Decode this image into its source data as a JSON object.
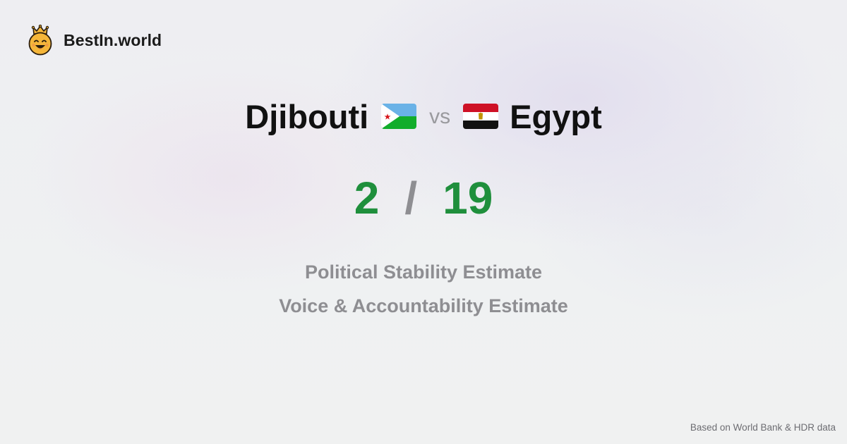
{
  "brand": {
    "name": "BestIn.world",
    "logo_icon": "crowned-smiley-icon"
  },
  "comparison": {
    "left_country": "Djibouti",
    "left_flag_icon": "djibouti-flag-icon",
    "vs_label": "vs",
    "right_country": "Egypt",
    "right_flag_icon": "egypt-flag-icon"
  },
  "scores": {
    "left": "2",
    "separator": "/",
    "right": "19",
    "color": "#1f8f3c"
  },
  "metrics": [
    "Political Stability Estimate",
    "Voice & Accountability Estimate"
  ],
  "footnote": "Based on World Bank & HDR data",
  "colors": {
    "score_green": "#1f8f3c",
    "muted_gray": "#8e8e92",
    "logo_orange": "#f5b63a"
  }
}
